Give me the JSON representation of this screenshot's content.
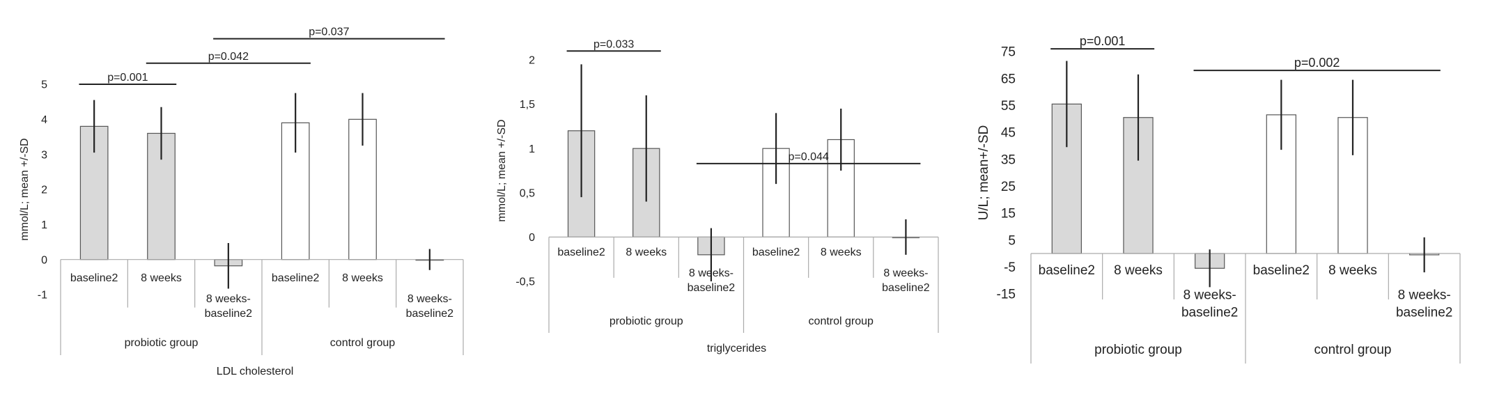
{
  "chart_data": [
    {
      "type": "bar",
      "title": "LDL cholesterol",
      "ylabel": "mmol/L; mean +/-SD",
      "ylim": [
        -1,
        5
      ],
      "yticks": [
        -1,
        0,
        1,
        2,
        3,
        4,
        5
      ],
      "ytick_labels": [
        "-1",
        "0",
        "1",
        "2",
        "3",
        "4",
        "5"
      ],
      "categories": [
        {
          "label": [
            "baseline2"
          ],
          "group": "probiotic group",
          "value": 3.8,
          "sd": 0.75,
          "fill": "#d9d9d9"
        },
        {
          "label": [
            "8 weeks"
          ],
          "group": "probiotic group",
          "value": 3.6,
          "sd": 0.75,
          "fill": "#d9d9d9"
        },
        {
          "label": [
            "8 weeks-",
            "baseline2"
          ],
          "group": "probiotic group",
          "value": -0.18,
          "sd": 0.65,
          "fill": "#d9d9d9"
        },
        {
          "label": [
            "baseline2"
          ],
          "group": "control group",
          "value": 3.9,
          "sd": 0.85,
          "fill": "#ffffff"
        },
        {
          "label": [
            "8 weeks"
          ],
          "group": "control group",
          "value": 4.0,
          "sd": 0.75,
          "fill": "#ffffff"
        },
        {
          "label": [
            "8 weeks-",
            "baseline2"
          ],
          "group": "control group",
          "value": 0.0,
          "sd": 0.3,
          "fill": "#ffffff"
        }
      ],
      "groups": [
        "probiotic group",
        "control group"
      ],
      "significance": [
        {
          "label": "p=0.001",
          "from": 0,
          "to": 1,
          "y": 5.0
        },
        {
          "label": "p=0.042",
          "from": 1,
          "to": 3,
          "y": 5.6
        },
        {
          "label": "p=0.037",
          "from": 2,
          "to": 5,
          "y": 6.3
        }
      ]
    },
    {
      "type": "bar",
      "title": "triglycerides",
      "ylabel": "mmol/L; mean +/-SD",
      "ylim": [
        -0.5,
        2
      ],
      "yticks": [
        -0.5,
        0,
        0.5,
        1,
        1.5,
        2
      ],
      "ytick_labels": [
        "-0,5",
        "0",
        "0,5",
        "1",
        "1,5",
        "2"
      ],
      "categories": [
        {
          "label": [
            "baseline2"
          ],
          "group": "probiotic group",
          "value": 1.2,
          "sd": 0.75,
          "fill": "#d9d9d9"
        },
        {
          "label": [
            "8 weeks"
          ],
          "group": "probiotic group",
          "value": 1.0,
          "sd": 0.6,
          "fill": "#d9d9d9"
        },
        {
          "label": [
            "8 weeks-",
            "baseline2"
          ],
          "group": "probiotic group",
          "value": -0.2,
          "sd": 0.3,
          "fill": "#d9d9d9"
        },
        {
          "label": [
            "baseline2"
          ],
          "group": "control group",
          "value": 1.0,
          "sd": 0.4,
          "fill": "#ffffff"
        },
        {
          "label": [
            "8 weeks"
          ],
          "group": "control group",
          "value": 1.1,
          "sd": 0.35,
          "fill": "#ffffff"
        },
        {
          "label": [
            "8 weeks-",
            "baseline2"
          ],
          "group": "control group",
          "value": 0.0,
          "sd": 0.2,
          "fill": "#ffffff"
        }
      ],
      "groups": [
        "probiotic group",
        "control group"
      ],
      "significance": [
        {
          "label": "p=0.033",
          "from": 0,
          "to": 1,
          "y": 2.1
        },
        {
          "label": "p=0.044",
          "from": 2,
          "to": 5,
          "y": 0.83
        }
      ]
    },
    {
      "type": "bar",
      "title": "",
      "ylabel": "U/L; mean+/-SD",
      "ylim": [
        -15,
        75
      ],
      "yticks": [
        -15,
        -5,
        5,
        15,
        25,
        35,
        45,
        55,
        65,
        75
      ],
      "ytick_labels": [
        "-15",
        "-5",
        "5",
        "15",
        "25",
        "35",
        "45",
        "55",
        "65",
        "75"
      ],
      "categories": [
        {
          "label": [
            "baseline2"
          ],
          "group": "probiotic group",
          "value": 55.5,
          "sd": 16,
          "fill": "#d9d9d9"
        },
        {
          "label": [
            "8 weeks"
          ],
          "group": "probiotic group",
          "value": 50.5,
          "sd": 16,
          "fill": "#d9d9d9"
        },
        {
          "label": [
            "8 weeks-",
            "baseline2"
          ],
          "group": "probiotic group",
          "value": -5.5,
          "sd": 7,
          "fill": "#d9d9d9"
        },
        {
          "label": [
            "baseline2"
          ],
          "group": "control group",
          "value": 51.5,
          "sd": 13,
          "fill": "#ffffff"
        },
        {
          "label": [
            "8 weeks"
          ],
          "group": "control group",
          "value": 50.5,
          "sd": 14,
          "fill": "#ffffff"
        },
        {
          "label": [
            "8 weeks-",
            "baseline2"
          ],
          "group": "control group",
          "value": -0.5,
          "sd": 6.5,
          "fill": "#ffffff"
        }
      ],
      "groups": [
        "probiotic group",
        "control group"
      ],
      "significance": [
        {
          "label": "p=0.001",
          "from": 0,
          "to": 1,
          "y": 76
        },
        {
          "label": "p=0.002",
          "from": 2,
          "to": 5,
          "y": 68
        }
      ]
    }
  ]
}
